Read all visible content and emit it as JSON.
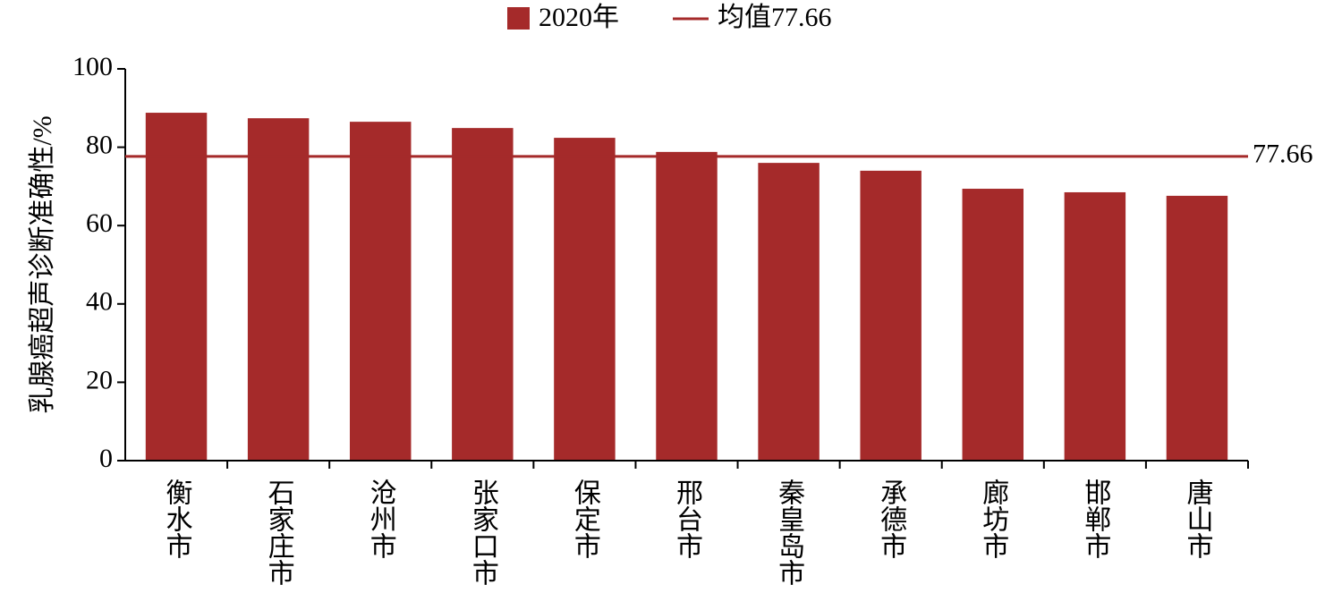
{
  "chart_data": {
    "type": "bar",
    "y_label": "乳腺癌超声诊断准确性/%",
    "categories": [
      "衡水市",
      "石家庄市",
      "沧州市",
      "张家口市",
      "保定市",
      "邢台市",
      "秦皇岛市",
      "承德市",
      "廊坊市",
      "邯郸市",
      "唐山市"
    ],
    "series": [
      {
        "name": "2020年",
        "color": "#a52a2a",
        "values": [
          88.8,
          87.4,
          86.5,
          84.9,
          82.4,
          78.8,
          76.0,
          74.0,
          69.4,
          68.5,
          67.6
        ]
      }
    ],
    "mean": {
      "name": "均值77.66",
      "value": 77.66,
      "color": "#a52a2a"
    },
    "ylim": [
      0,
      100
    ],
    "yticks": [
      0,
      20,
      40,
      60,
      80,
      100
    ]
  }
}
